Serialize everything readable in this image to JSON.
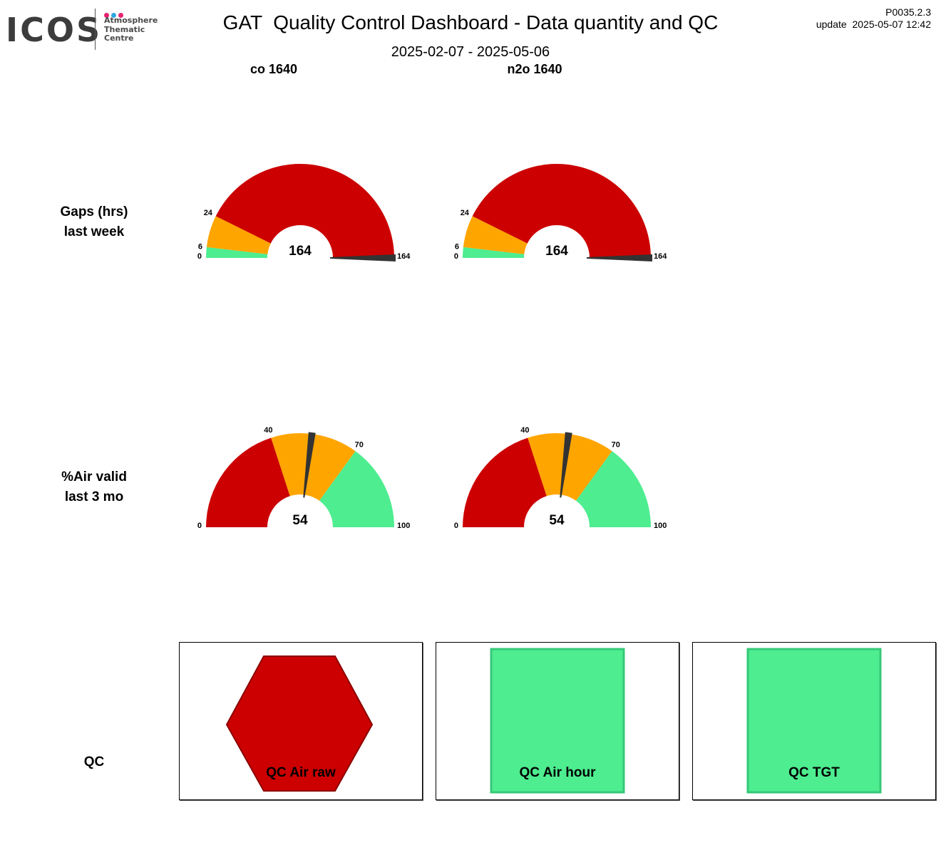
{
  "logo": {
    "wordmark": "ICOS",
    "lines": [
      "Atmosphere",
      "Thematic",
      "Centre"
    ],
    "dot_colors": [
      "#e6236f",
      "#2fa6e0",
      "#e6236f"
    ]
  },
  "header": {
    "title": "GAT  Quality Control Dashboard - Data quantity and QC",
    "date_range": "2025-02-07 - 2025-05-06",
    "version": "P0035.2.3",
    "update": "update  2025-05-07 12:42"
  },
  "colors": {
    "red": "#cc0000",
    "orange": "#ffa500",
    "green": "#4ded90",
    "needle": "#333333"
  },
  "columns": [
    "co 1640",
    "n2o 1640"
  ],
  "rows": [
    {
      "label_line1": "Gaps (hrs)",
      "label_line2": "last week"
    },
    {
      "label_line1": "%Air valid",
      "label_line2": "last 3 mo"
    },
    {
      "label_line1": "QC",
      "label_line2": ""
    }
  ],
  "chart_data": [
    {
      "type": "gauge",
      "title": "co 1640",
      "metric": "Gaps (hrs) last week",
      "min": 0,
      "max": 164,
      "value": 164,
      "bands": [
        {
          "from": 0,
          "to": 6,
          "color": "green"
        },
        {
          "from": 6,
          "to": 24,
          "color": "orange"
        },
        {
          "from": 24,
          "to": 164,
          "color": "red"
        }
      ],
      "ticks": [
        0,
        6,
        24,
        164
      ]
    },
    {
      "type": "gauge",
      "title": "n2o 1640",
      "metric": "Gaps (hrs) last week",
      "min": 0,
      "max": 164,
      "value": 164,
      "bands": [
        {
          "from": 0,
          "to": 6,
          "color": "green"
        },
        {
          "from": 6,
          "to": 24,
          "color": "orange"
        },
        {
          "from": 24,
          "to": 164,
          "color": "red"
        }
      ],
      "ticks": [
        0,
        6,
        24,
        164
      ]
    },
    {
      "type": "gauge",
      "title": "co 1640",
      "metric": "%Air valid last 3 mo",
      "min": 0,
      "max": 100,
      "value": 54,
      "bands": [
        {
          "from": 0,
          "to": 40,
          "color": "red"
        },
        {
          "from": 40,
          "to": 70,
          "color": "orange"
        },
        {
          "from": 70,
          "to": 100,
          "color": "green"
        }
      ],
      "ticks": [
        0,
        40,
        70,
        100
      ]
    },
    {
      "type": "gauge",
      "title": "n2o 1640",
      "metric": "%Air valid last 3 mo",
      "min": 0,
      "max": 100,
      "value": 54,
      "bands": [
        {
          "from": 0,
          "to": 40,
          "color": "red"
        },
        {
          "from": 40,
          "to": 70,
          "color": "orange"
        },
        {
          "from": 70,
          "to": 100,
          "color": "green"
        }
      ],
      "ticks": [
        0,
        40,
        70,
        100
      ]
    }
  ],
  "qc_indicators": [
    {
      "label": "QC Air raw",
      "shape": "hexagon",
      "status_color": "red"
    },
    {
      "label": "QC Air hour",
      "shape": "square",
      "status_color": "green"
    },
    {
      "label": "QC TGT",
      "shape": "square",
      "status_color": "green"
    }
  ]
}
